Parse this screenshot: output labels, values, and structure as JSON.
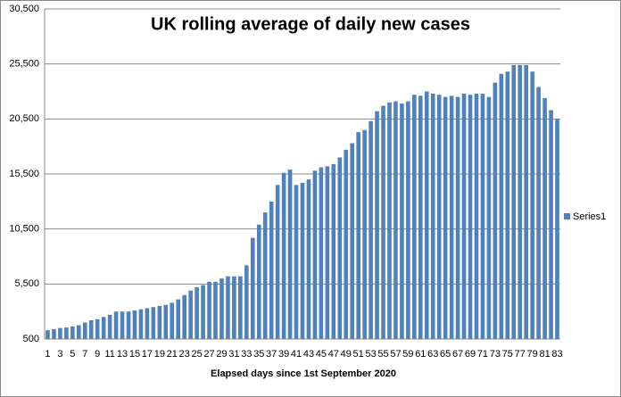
{
  "chart_data": {
    "type": "bar",
    "title": "UK rolling average of  daily new cases",
    "x_label": "Elapsed days since 1st September 2020",
    "categories": [
      "1",
      null,
      "3",
      null,
      "5",
      null,
      "7",
      null,
      "9",
      null,
      "11",
      null,
      "13",
      null,
      "15",
      null,
      "17",
      null,
      "19",
      null,
      "21",
      null,
      "23",
      null,
      "25",
      null,
      "27",
      null,
      "29",
      null,
      "31",
      null,
      "33",
      null,
      "35",
      null,
      "37",
      null,
      "39",
      null,
      "41",
      null,
      "43",
      null,
      "45",
      null,
      "47",
      null,
      "49",
      null,
      "51",
      null,
      "53",
      null,
      "55",
      null,
      "57",
      null,
      "59",
      null,
      "61",
      null,
      "63",
      null,
      "65",
      null,
      "67",
      null,
      "69",
      null,
      "71",
      null,
      "73",
      null,
      "75",
      null,
      "77",
      null,
      "79",
      null,
      "81",
      null,
      "83"
    ],
    "series": [
      {
        "name": "Series1",
        "color": "#4f81bd",
        "values": [
          1300,
          1400,
          1500,
          1550,
          1650,
          1750,
          2000,
          2200,
          2300,
          2500,
          2700,
          3000,
          3000,
          3000,
          3100,
          3200,
          3300,
          3400,
          3500,
          3600,
          3800,
          4100,
          4500,
          4900,
          5200,
          5400,
          5700,
          5700,
          6000,
          6200,
          6200,
          6200,
          7200,
          9700,
          10900,
          12000,
          13000,
          14500,
          15600,
          15900,
          14500,
          14700,
          15000,
          15800,
          16100,
          16200,
          16400,
          17000,
          17700,
          18300,
          19300,
          19500,
          20300,
          21200,
          21700,
          22000,
          22100,
          21900,
          22100,
          22700,
          22600,
          23000,
          22800,
          22700,
          22500,
          22600,
          22500,
          22800,
          22700,
          22800,
          22800,
          22500,
          23800,
          24600,
          24800,
          25400,
          25400,
          25400,
          24800,
          23400,
          22400,
          21300,
          20500
        ]
      }
    ],
    "ylim": [
      500,
      30500
    ],
    "yticks": [
      {
        "value": 500,
        "label": "500"
      },
      {
        "value": 5500,
        "label": "5,500"
      },
      {
        "value": 10500,
        "label": "10,500"
      },
      {
        "value": 15500,
        "label": "15,500"
      },
      {
        "value": 20500,
        "label": "20,500"
      },
      {
        "value": 25500,
        "label": "25,500"
      },
      {
        "value": 30500,
        "label": "30,500"
      }
    ],
    "grid": true,
    "legend": "right"
  }
}
